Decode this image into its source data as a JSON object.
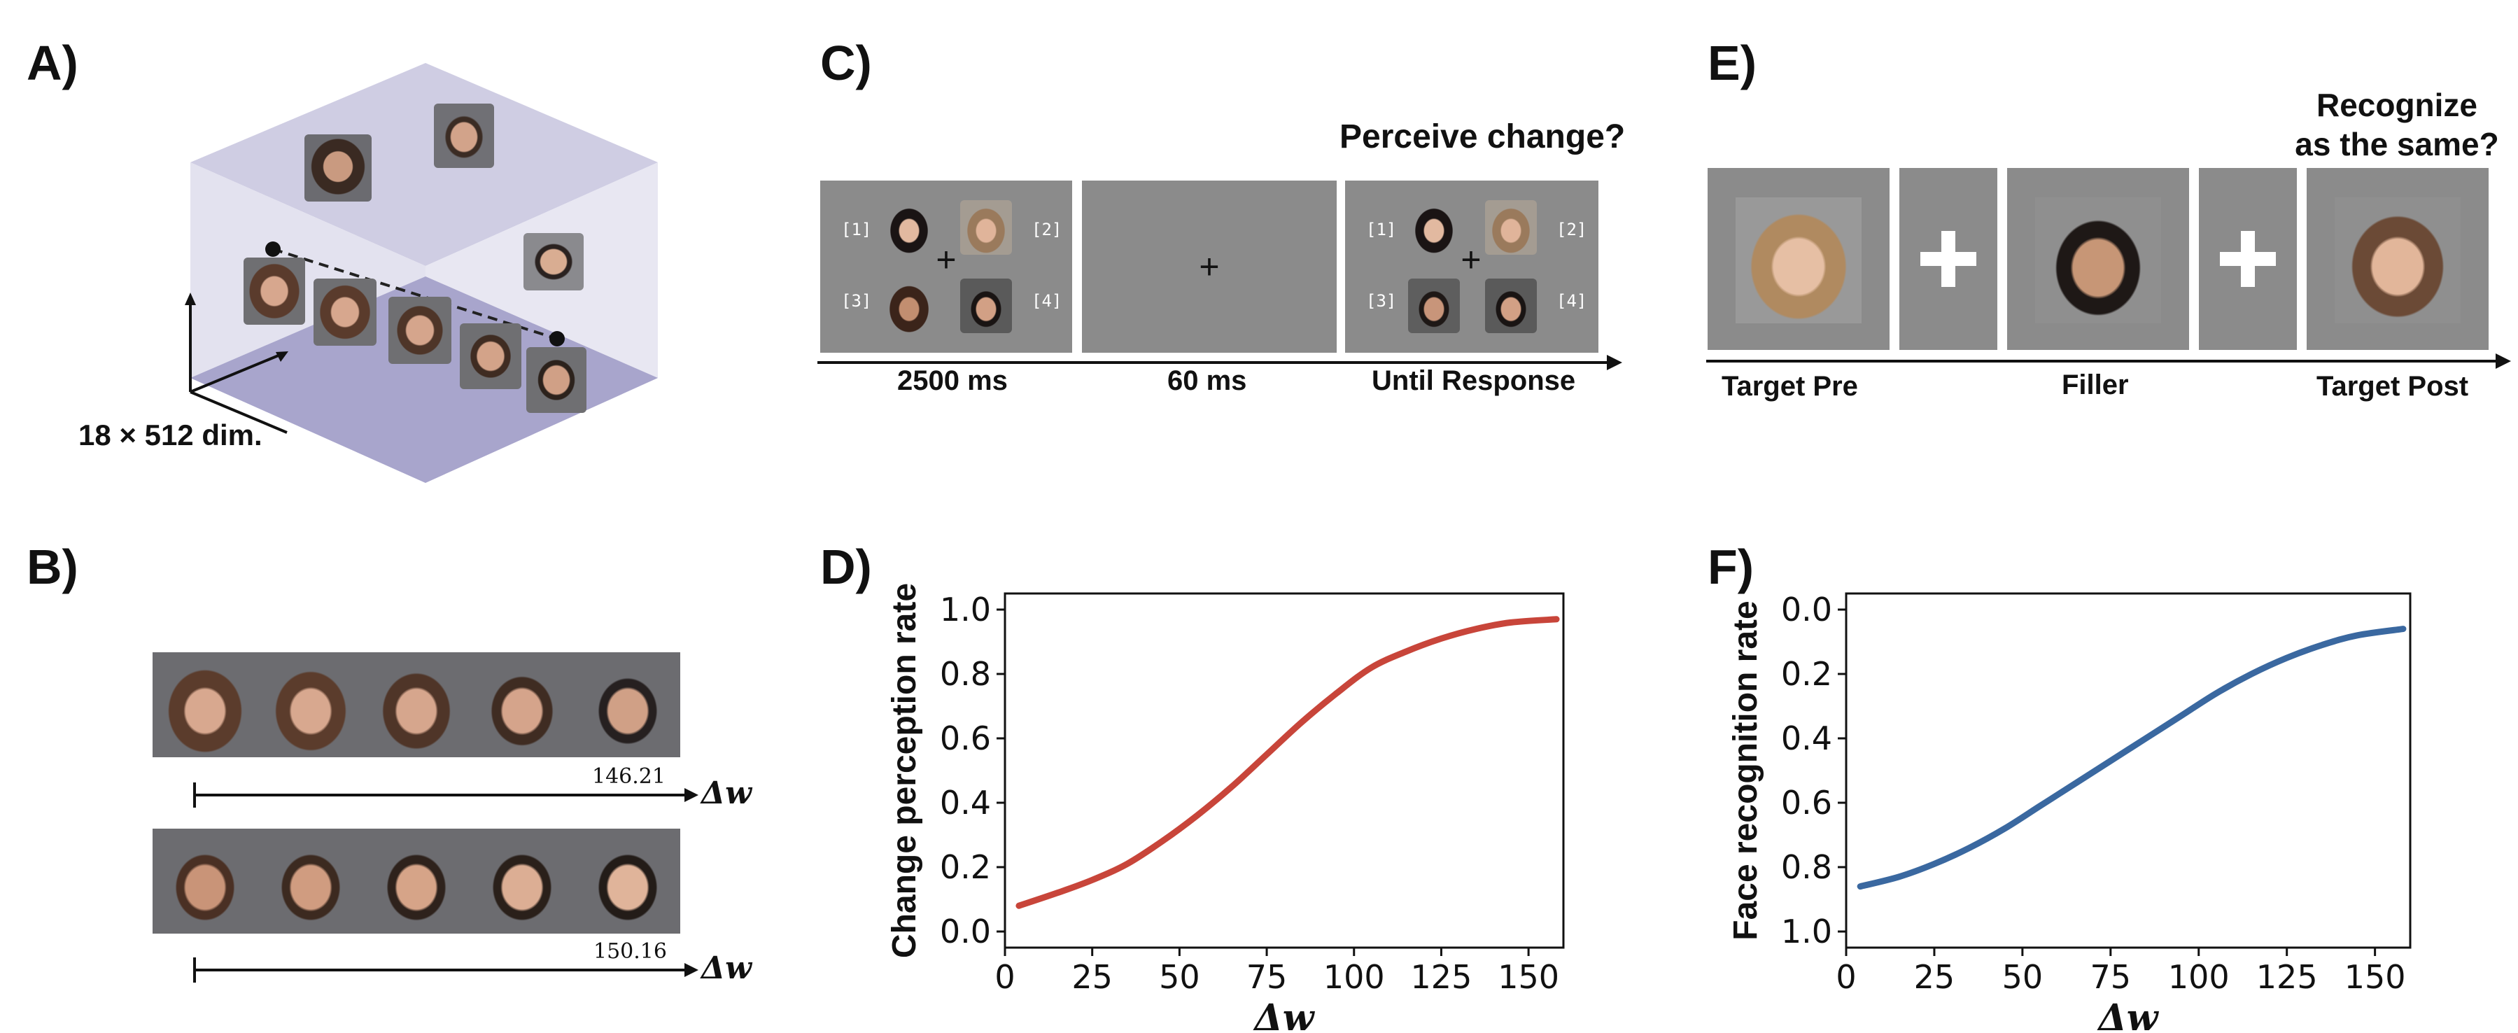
{
  "panel_labels": {
    "a": "A)",
    "b": "B)",
    "c": "C)",
    "d": "D)",
    "e": "E)",
    "f": "F)"
  },
  "panel_a": {
    "dims_label": "18 × 512 dim."
  },
  "panel_b": {
    "row1_value": "146.21",
    "row2_value": "150.16",
    "axis_label": "Δw"
  },
  "panel_c": {
    "question": "Perceive change?",
    "slot_labels": [
      "[1]",
      "[2]",
      "[3]",
      "[4]"
    ],
    "timeline": [
      "2500 ms",
      "60 ms",
      "Until Response"
    ]
  },
  "panel_e": {
    "question_line1": "Recognize",
    "question_line2": "as the same?",
    "timeline": [
      "Target Pre",
      "Filler",
      "Target Post"
    ]
  },
  "chart_data": [
    {
      "type": "line",
      "panel": "D)",
      "xlabel": "Δw",
      "ylabel": "Change perception rate",
      "xlim": [
        0,
        160
      ],
      "ylim": [
        -0.05,
        1.05
      ],
      "xticks": [
        "0",
        "25",
        "50",
        "75",
        "100",
        "125",
        "150"
      ],
      "yticks": [
        "0.0",
        "0.2",
        "0.4",
        "0.6",
        "0.8",
        "1.0"
      ],
      "color": "#c8453a",
      "series": [
        {
          "x": [
            4,
            15,
            25,
            35,
            45,
            55,
            65,
            75,
            85,
            95,
            105,
            115,
            125,
            135,
            145,
            158
          ],
          "values": [
            0.08,
            0.12,
            0.16,
            0.21,
            0.28,
            0.36,
            0.45,
            0.55,
            0.65,
            0.74,
            0.82,
            0.87,
            0.91,
            0.94,
            0.96,
            0.97
          ]
        }
      ]
    },
    {
      "type": "line",
      "panel": "F)",
      "xlabel": "Δw",
      "ylabel": "Face recognition rate",
      "xlim": [
        0,
        160
      ],
      "ylim": [
        1.05,
        -0.05
      ],
      "y_inverted": true,
      "xticks": [
        "0",
        "25",
        "50",
        "75",
        "100",
        "125",
        "150"
      ],
      "yticks": [
        "0.0",
        "0.2",
        "0.4",
        "0.6",
        "0.8",
        "1.0"
      ],
      "color": "#3a68a0",
      "series": [
        {
          "x": [
            4,
            15,
            25,
            35,
            45,
            55,
            65,
            75,
            85,
            95,
            105,
            115,
            125,
            135,
            145,
            158
          ],
          "values": [
            0.86,
            0.83,
            0.79,
            0.74,
            0.68,
            0.61,
            0.54,
            0.47,
            0.4,
            0.33,
            0.26,
            0.2,
            0.15,
            0.11,
            0.08,
            0.06
          ]
        }
      ]
    }
  ]
}
